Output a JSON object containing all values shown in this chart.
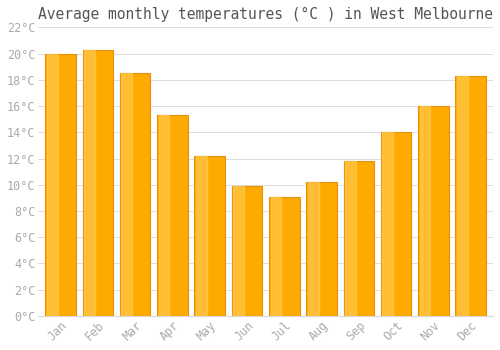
{
  "title": "Average monthly temperatures (°C ) in West Melbourne",
  "months": [
    "Jan",
    "Feb",
    "Mar",
    "Apr",
    "May",
    "Jun",
    "Jul",
    "Aug",
    "Sep",
    "Oct",
    "Nov",
    "Dec"
  ],
  "values": [
    20.0,
    20.3,
    18.5,
    15.3,
    12.2,
    9.9,
    9.1,
    10.2,
    11.8,
    14.0,
    16.0,
    18.3
  ],
  "bar_color_main": "#FFAA00",
  "bar_color_edge": "#E8900A",
  "bar_color_light": "#FFD060",
  "ylim": [
    0,
    22
  ],
  "ytick_step": 2,
  "background_color": "#ffffff",
  "grid_color": "#d8d8d8",
  "title_fontsize": 10.5,
  "tick_fontsize": 8.5,
  "tick_color": "#aaaaaa",
  "font_family": "monospace"
}
